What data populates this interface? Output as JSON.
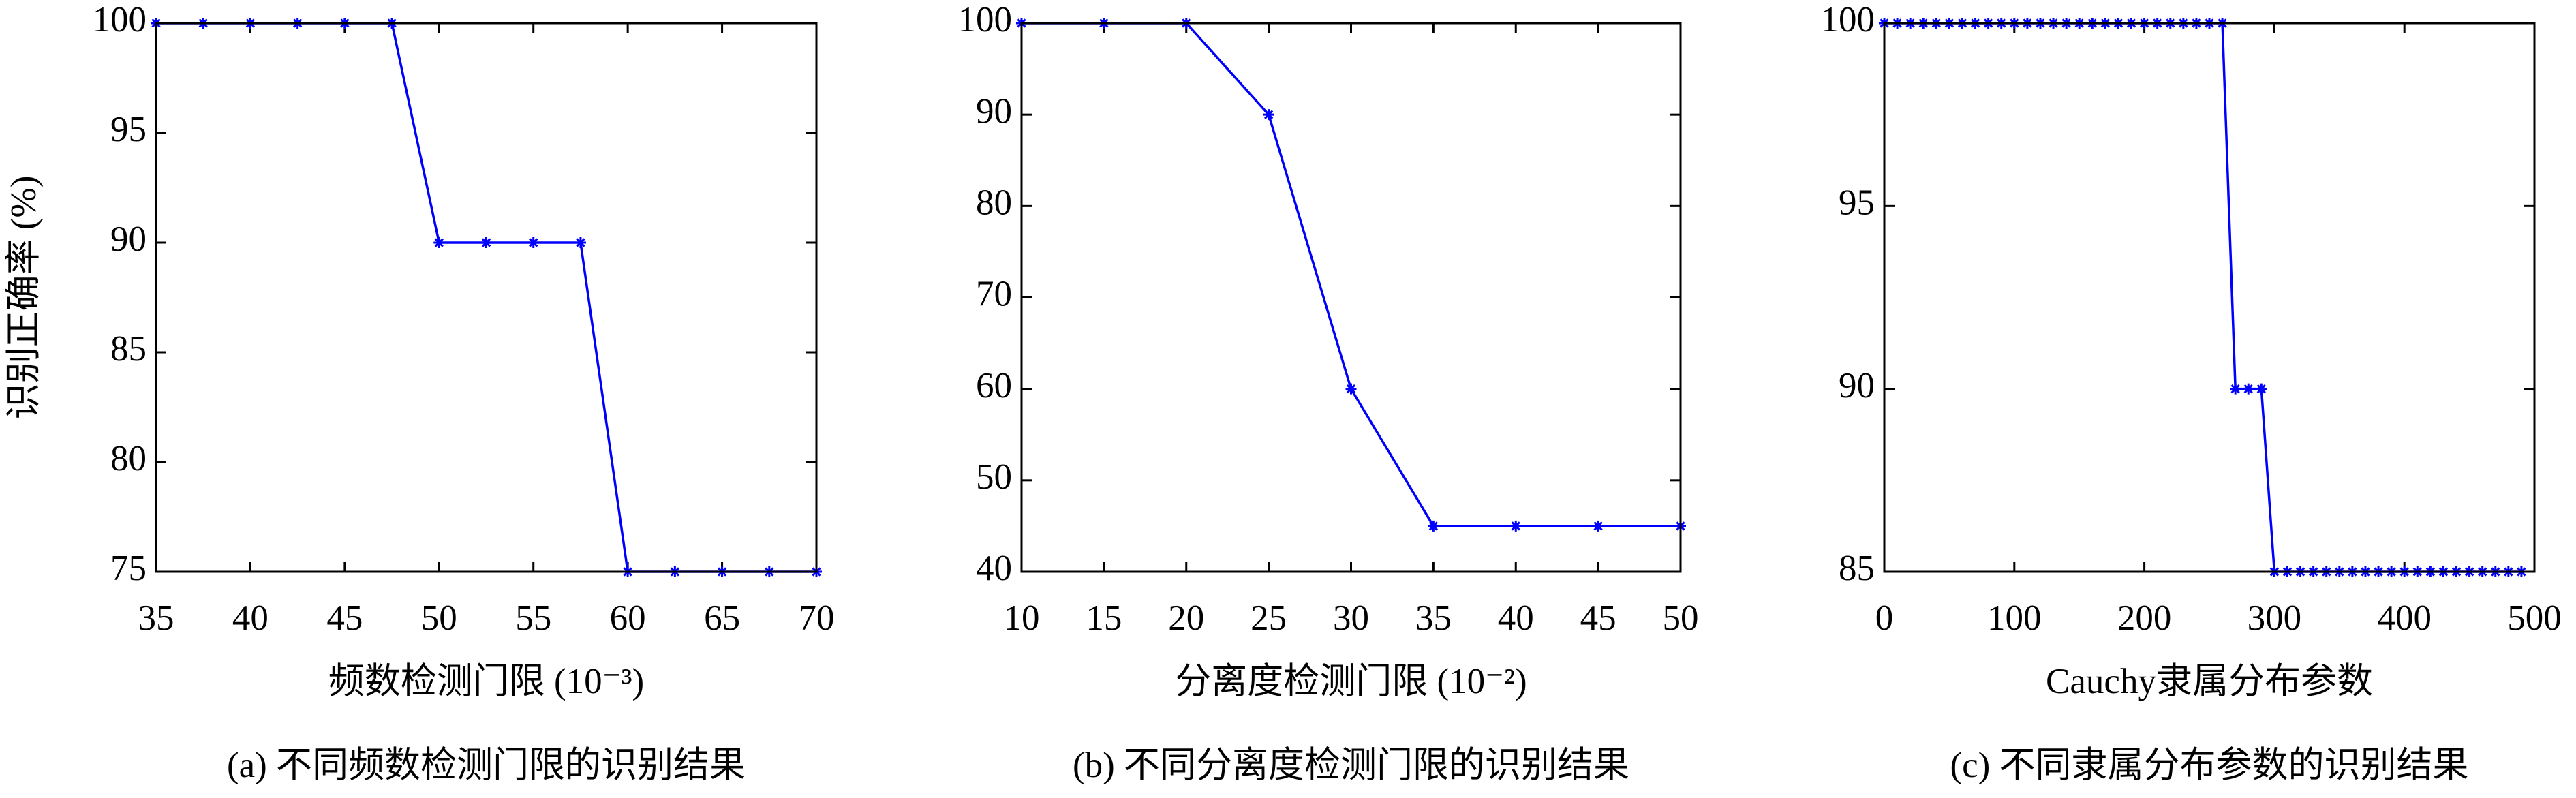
{
  "chart_data": [
    {
      "type": "line",
      "x": [
        35,
        37.5,
        40,
        42.5,
        45,
        47.5,
        50,
        52.5,
        55,
        57.5,
        60,
        62.5,
        65,
        67.5,
        70
      ],
      "values": [
        100,
        100,
        100,
        100,
        100,
        100,
        90,
        90,
        90,
        90,
        75,
        75,
        75,
        75,
        75
      ],
      "color": "#0000ff",
      "xlim": [
        35,
        70
      ],
      "xticks": [
        35,
        40,
        45,
        50,
        55,
        60,
        65,
        70
      ],
      "ylim": [
        75,
        100
      ],
      "yticks": [
        75,
        80,
        85,
        90,
        95,
        100
      ],
      "xlabel": "频数检测门限 (10⁻³)",
      "ylabel": "识别正确率 (%)",
      "caption": "(a) 不同频数检测门限的识别结果"
    },
    {
      "type": "line",
      "x": [
        10,
        15,
        20,
        25,
        30,
        35,
        40,
        45,
        50
      ],
      "values": [
        100,
        100,
        100,
        90,
        60,
        45,
        45,
        45,
        45
      ],
      "color": "#0000ff",
      "xlim": [
        10,
        50
      ],
      "xticks": [
        10,
        15,
        20,
        25,
        30,
        35,
        40,
        45,
        50
      ],
      "ylim": [
        40,
        100
      ],
      "yticks": [
        40,
        50,
        60,
        70,
        80,
        90,
        100
      ],
      "xlabel": "分离度检测门限 (10⁻²)",
      "caption": "(b) 不同分离度检测门限的识别结果"
    },
    {
      "type": "line",
      "x": [
        0,
        10,
        20,
        30,
        40,
        50,
        60,
        70,
        80,
        90,
        100,
        110,
        120,
        130,
        140,
        150,
        160,
        170,
        180,
        190,
        200,
        210,
        220,
        230,
        240,
        250,
        260,
        270,
        280,
        290,
        300,
        310,
        320,
        330,
        340,
        350,
        360,
        370,
        380,
        390,
        400,
        410,
        420,
        430,
        440,
        450,
        460,
        470,
        480,
        490
      ],
      "values": [
        100,
        100,
        100,
        100,
        100,
        100,
        100,
        100,
        100,
        100,
        100,
        100,
        100,
        100,
        100,
        100,
        100,
        100,
        100,
        100,
        100,
        100,
        100,
        100,
        100,
        100,
        100,
        90,
        90,
        90,
        85,
        85,
        85,
        85,
        85,
        85,
        85,
        85,
        85,
        85,
        85,
        85,
        85,
        85,
        85,
        85,
        85,
        85,
        85,
        85
      ],
      "color": "#0000ff",
      "xlim": [
        0,
        500
      ],
      "xticks": [
        0,
        100,
        200,
        300,
        400,
        500
      ],
      "ylim": [
        85,
        100
      ],
      "yticks": [
        85,
        90,
        95,
        100
      ],
      "xlabel": "Cauchy隶属分布参数",
      "caption": "(c) 不同隶属分布参数的识别结果"
    }
  ]
}
